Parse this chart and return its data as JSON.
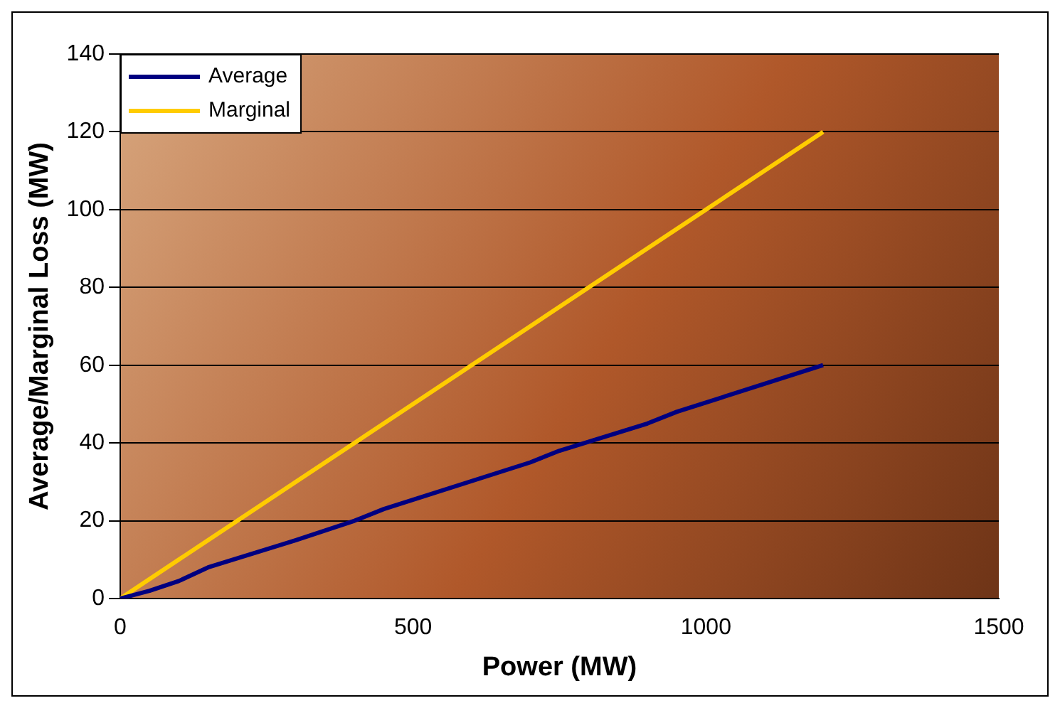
{
  "chart_data": {
    "type": "line",
    "xlabel": "Power (MW)",
    "ylabel": "Average/Marginal Loss (MW)",
    "xlim": [
      0,
      1500
    ],
    "xticks": [
      0,
      500,
      1000,
      1500
    ],
    "ylim": [
      0,
      140
    ],
    "yticks": [
      0,
      20,
      40,
      60,
      80,
      100,
      120,
      140
    ],
    "grid": "y",
    "legend": "top left",
    "marker": "none",
    "line_style": "solid",
    "series": [
      {
        "name": "Average",
        "color": "#000080",
        "x": [
          0,
          50,
          100,
          150,
          300,
          400,
          450,
          700,
          750,
          900,
          950,
          1200
        ],
        "values": [
          0,
          2,
          4.5,
          8,
          15,
          20,
          23,
          35,
          38,
          45,
          48,
          60
        ]
      },
      {
        "name": "Marginal",
        "color": "#ffcc00",
        "x": [
          0,
          300,
          800,
          900,
          1200
        ],
        "values": [
          0,
          30,
          80,
          90,
          120
        ]
      }
    ]
  }
}
